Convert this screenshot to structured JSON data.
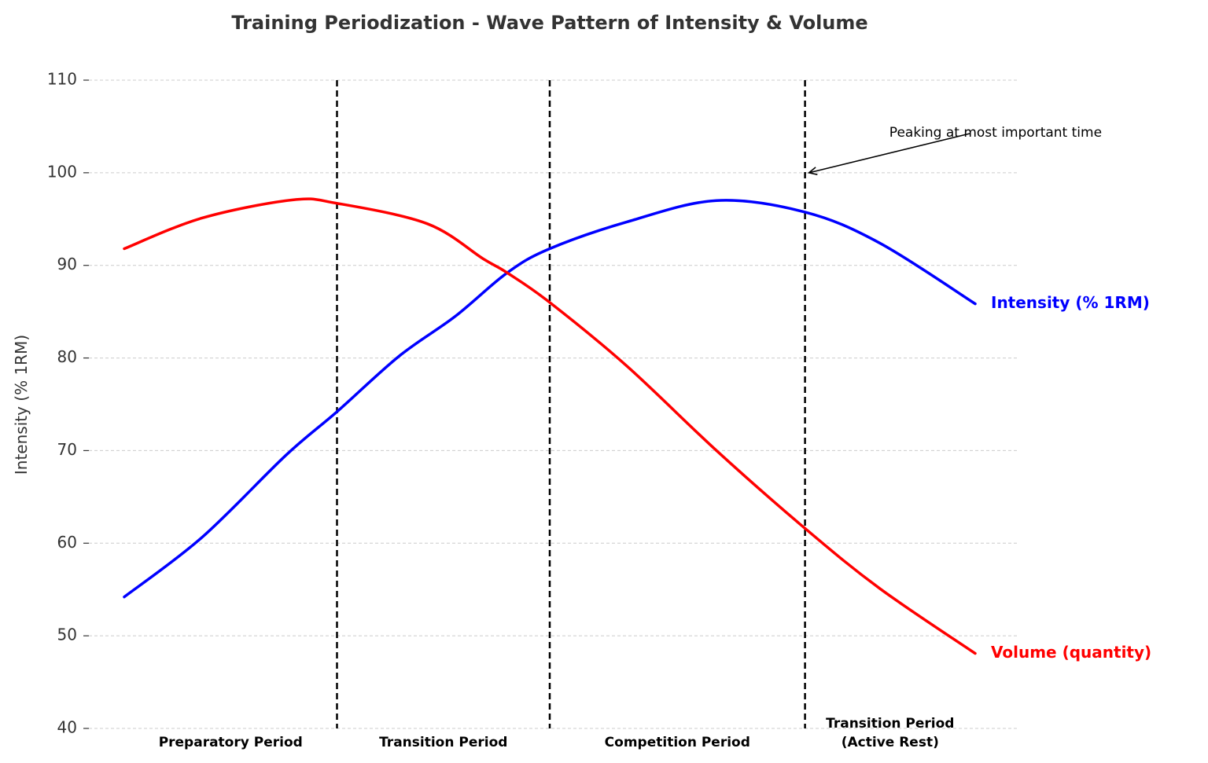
{
  "chart_data": {
    "type": "line",
    "title": "Training Periodization - Wave Pattern of Intensity & Volume",
    "xlabel": "",
    "ylabel": "Intensity (% 1RM)",
    "xlim": [
      -0.4,
      10.5
    ],
    "ylim": [
      40,
      110
    ],
    "yticks": [
      40,
      50,
      60,
      70,
      80,
      90,
      100,
      110
    ],
    "grid": "horizontal dashed",
    "legend": "none (inline labels at right end of lines)",
    "series": [
      {
        "name": "Intensity (% 1RM)",
        "color": "#0000ff",
        "x": [
          0,
          0.91,
          1.9,
          2.5,
          3.23,
          3.89,
          4.5,
          5.0,
          5.91,
          6.96,
          8.0,
          8.88,
          10
        ],
        "y": [
          54.2,
          60.6,
          69.5,
          74.2,
          80.2,
          84.5,
          89.2,
          91.8,
          94.7,
          97.0,
          95.75,
          92.4,
          85.85
        ]
      },
      {
        "name": "Volume (quantity)",
        "color": "#ff0000",
        "x": [
          0,
          0.91,
          1.97,
          2.5,
          3.56,
          4.22,
          4.5,
          5.0,
          5.91,
          6.96,
          8.0,
          8.88,
          10
        ],
        "y": [
          91.8,
          95.1,
          97.06,
          96.7,
          94.5,
          90.7,
          89.2,
          86.0,
          79.1,
          70.0,
          61.6,
          55.1,
          48.1
        ]
      }
    ],
    "phase_boundaries": [
      2.5,
      5,
      8
    ],
    "periods": [
      {
        "label": "Preparatory Period",
        "label2": "",
        "center": 1.25
      },
      {
        "label": "Transition Period",
        "label2": "",
        "center": 3.75
      },
      {
        "label": "Competition Period",
        "label2": "",
        "center": 6.5
      },
      {
        "label": "Transition Period",
        "label2": "(Active Rest)",
        "center": 9.0
      }
    ],
    "annotation": {
      "text": "Peaking at most important time",
      "arrow_target": [
        8,
        100
      ],
      "text_position": [
        9,
        104.4
      ]
    }
  }
}
